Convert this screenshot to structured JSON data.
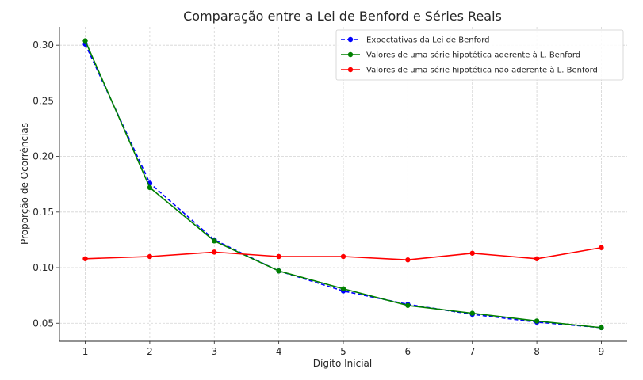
{
  "chart_data": {
    "type": "line",
    "title": "Comparação entre a Lei de Benford e Séries Reais",
    "xlabel": "Dígito Inicial",
    "ylabel": "Proporção de Ocorrências",
    "x": [
      1,
      2,
      3,
      4,
      5,
      6,
      7,
      8,
      9
    ],
    "xticks": [
      "1",
      "2",
      "3",
      "4",
      "5",
      "6",
      "7",
      "8",
      "9"
    ],
    "xlim": [
      0.6,
      9.4
    ],
    "yticks": [
      "0.05",
      "0.10",
      "0.15",
      "0.20",
      "0.25",
      "0.30"
    ],
    "ylim": [
      0.0338,
      0.3165
    ],
    "grid": true,
    "legend_position": "top-right",
    "series": [
      {
        "name": "Expectativas da Lei de Benford",
        "color": "#0000ff",
        "linestyle": "dashed",
        "values": [
          0.301,
          0.176,
          0.125,
          0.097,
          0.079,
          0.067,
          0.058,
          0.051,
          0.046
        ]
      },
      {
        "name": "Valores de uma série hipotética aderente à L. Benford",
        "color": "#008000",
        "linestyle": "solid",
        "values": [
          0.304,
          0.172,
          0.124,
          0.097,
          0.081,
          0.066,
          0.059,
          0.052,
          0.046
        ]
      },
      {
        "name": "Valores de uma série hipotética não aderente à L. Benford",
        "color": "#ff0000",
        "linestyle": "solid",
        "values": [
          0.108,
          0.11,
          0.114,
          0.11,
          0.11,
          0.107,
          0.113,
          0.108,
          0.118
        ]
      }
    ]
  }
}
